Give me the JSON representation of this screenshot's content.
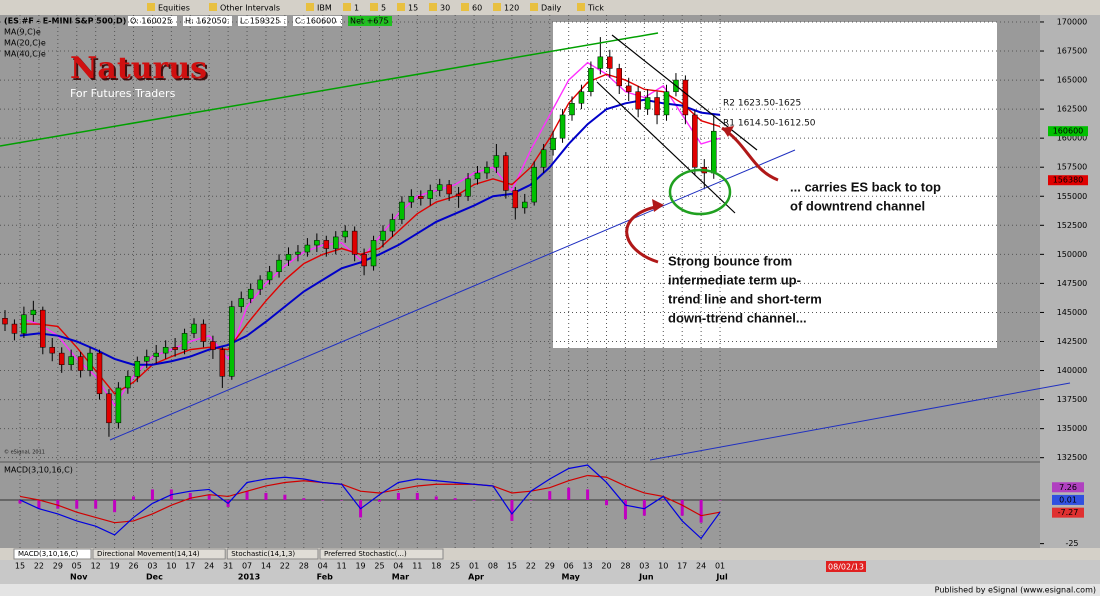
{
  "toolbar": [
    "Equities",
    "Other Intervals",
    "IBM",
    "1",
    "5",
    "15",
    "30",
    "60",
    "120",
    "Daily",
    "Tick"
  ],
  "chart_data": {
    "type": "candlestick",
    "symbol": "(ES #F - E-MINI S&P 500,D)",
    "quote": [
      "O: 160025",
      "H: 162050",
      "L: 159325",
      "C: 160600",
      "Net +675"
    ],
    "brand": "Naturus",
    "tagline": "For Futures Traders",
    "copyright": "© eSignal, 2011",
    "up_color": "#00c000",
    "down_color": "#e00000",
    "candles": [
      [
        144500,
        145200,
        143400,
        144000
      ],
      [
        144000,
        144400,
        142600,
        143200
      ],
      [
        143200,
        145500,
        142800,
        144800
      ],
      [
        144800,
        146000,
        144200,
        145200
      ],
      [
        145200,
        145500,
        141400,
        142000
      ],
      [
        142000,
        142800,
        140800,
        141500
      ],
      [
        141500,
        142000,
        139800,
        140500
      ],
      [
        140500,
        141800,
        140000,
        141200
      ],
      [
        141200,
        141600,
        139400,
        140000
      ],
      [
        140000,
        142000,
        139500,
        141500
      ],
      [
        141500,
        141800,
        137500,
        138000
      ],
      [
        138000,
        138400,
        134300,
        135500
      ],
      [
        135500,
        139000,
        135000,
        138500
      ],
      [
        138500,
        140000,
        138000,
        139500
      ],
      [
        139500,
        141200,
        139000,
        140800
      ],
      [
        140800,
        141800,
        140200,
        141200
      ],
      [
        141200,
        142200,
        140600,
        141500
      ],
      [
        141500,
        142600,
        141000,
        142000
      ],
      [
        142000,
        142800,
        141200,
        141800
      ],
      [
        141800,
        143600,
        141400,
        143200
      ],
      [
        143200,
        144500,
        142800,
        144000
      ],
      [
        144000,
        144400,
        142000,
        142500
      ],
      [
        142500,
        143000,
        141000,
        141800
      ],
      [
        141800,
        142000,
        138500,
        139500
      ],
      [
        139500,
        146000,
        139200,
        145500
      ],
      [
        145500,
        146800,
        145000,
        146200
      ],
      [
        146200,
        147500,
        145800,
        147000
      ],
      [
        147000,
        148200,
        146500,
        147800
      ],
      [
        147800,
        149000,
        147400,
        148500
      ],
      [
        148500,
        150000,
        148000,
        149500
      ],
      [
        149500,
        150600,
        149000,
        150000
      ],
      [
        150000,
        150800,
        149400,
        150200
      ],
      [
        150200,
        151400,
        149800,
        150800
      ],
      [
        150800,
        151800,
        150200,
        151200
      ],
      [
        151200,
        151600,
        149800,
        150500
      ],
      [
        150500,
        152000,
        150000,
        151500
      ],
      [
        151500,
        152500,
        151000,
        152000
      ],
      [
        152000,
        152400,
        149400,
        150000
      ],
      [
        150000,
        150500,
        148200,
        149000
      ],
      [
        149000,
        151600,
        148600,
        151200
      ],
      [
        151200,
        152500,
        150600,
        152000
      ],
      [
        152000,
        153500,
        151500,
        153000
      ],
      [
        153000,
        155000,
        152600,
        154500
      ],
      [
        154500,
        155600,
        154000,
        155000
      ],
      [
        155000,
        155500,
        154200,
        154800
      ],
      [
        154800,
        156000,
        154200,
        155500
      ],
      [
        155500,
        156500,
        155000,
        156000
      ],
      [
        156000,
        156400,
        154600,
        155200
      ],
      [
        155200,
        155800,
        154000,
        155000
      ],
      [
        155000,
        157000,
        154600,
        156500
      ],
      [
        156500,
        157600,
        156000,
        157000
      ],
      [
        157000,
        158000,
        156500,
        157500
      ],
      [
        157500,
        159500,
        157000,
        158500
      ],
      [
        158500,
        158800,
        154800,
        155500
      ],
      [
        155500,
        155800,
        153000,
        154000
      ],
      [
        154000,
        155200,
        153500,
        154500
      ],
      [
        154500,
        158000,
        154200,
        157500
      ],
      [
        157500,
        159500,
        157000,
        159000
      ],
      [
        159000,
        160600,
        158500,
        160000
      ],
      [
        160000,
        162500,
        159600,
        162000
      ],
      [
        162000,
        163600,
        161500,
        163000
      ],
      [
        163000,
        164600,
        162500,
        164000
      ],
      [
        164000,
        166600,
        163600,
        166000
      ],
      [
        166000,
        168700,
        165500,
        167000
      ],
      [
        167000,
        167600,
        165200,
        166000
      ],
      [
        166000,
        166400,
        163800,
        164500
      ],
      [
        164500,
        165200,
        163200,
        164000
      ],
      [
        164000,
        164500,
        161800,
        162500
      ],
      [
        162500,
        164200,
        162000,
        163500
      ],
      [
        163500,
        164000,
        161200,
        162000
      ],
      [
        162000,
        164600,
        161500,
        164000
      ],
      [
        164000,
        165600,
        163600,
        165000
      ],
      [
        165000,
        165400,
        161200,
        162000
      ],
      [
        162000,
        162400,
        156800,
        157500
      ],
      [
        157500,
        158200,
        155600,
        157000
      ],
      [
        157000,
        162000,
        156500,
        160600
      ]
    ],
    "series": [
      {
        "name": "MA(9,C)e",
        "color": "#ff30ff",
        "values": [
          144500,
          144000,
          143000,
          141000,
          139500,
          137000,
          139500,
          141200,
          141800,
          142500,
          143000,
          141000,
          145500,
          147500,
          149000,
          150200,
          150800,
          151000,
          149500,
          151500,
          153500,
          155000,
          155500,
          156000,
          157000,
          157500,
          155500,
          159000,
          162000,
          165000,
          166500,
          165500,
          164000,
          163500,
          164500,
          162000,
          159500,
          160000
        ]
      },
      {
        "name": "MA(20,C)e",
        "color": "#e00000",
        "values": [
          144000,
          144000,
          143800,
          142000,
          140000,
          138000,
          139000,
          140500,
          141200,
          141800,
          142000,
          141800,
          144000,
          146000,
          147800,
          149200,
          150000,
          150500,
          150000,
          150500,
          152000,
          153500,
          154500,
          155000,
          156000,
          156500,
          156000,
          157500,
          160000,
          163000,
          164800,
          165500,
          165000,
          164200,
          164000,
          163000,
          161500,
          161000
        ]
      },
      {
        "name": "MA(40,C)e",
        "color": "#0000c8",
        "values": [
          143000,
          143200,
          143000,
          142500,
          141800,
          141000,
          140500,
          140500,
          140800,
          141200,
          141800,
          142200,
          143000,
          144200,
          145500,
          146800,
          147800,
          148800,
          149300,
          150000,
          150800,
          151800,
          152800,
          153500,
          154200,
          155000,
          155200,
          156000,
          157500,
          159500,
          161200,
          162500,
          163000,
          163300,
          163000,
          162800,
          162200,
          162000
        ]
      }
    ],
    "ylim": [
      132300,
      170600
    ],
    "yticks": [
      132500,
      135000,
      137500,
      140000,
      142500,
      145000,
      147500,
      150000,
      152500,
      155000,
      157500,
      160000,
      162500,
      165000,
      167500,
      170000
    ],
    "grid": true,
    "markers": [
      {
        "value": 160600,
        "color": "#00c000"
      },
      {
        "value": 156380,
        "color": "#e00000"
      }
    ],
    "dates": [
      {
        "day": "15"
      },
      {
        "day": "22"
      },
      {
        "day": "29"
      },
      {
        "day": "05",
        "month": "Nov"
      },
      {
        "day": "12"
      },
      {
        "day": "19"
      },
      {
        "day": "26"
      },
      {
        "day": "03",
        "month": "Dec"
      },
      {
        "day": "10"
      },
      {
        "day": "17"
      },
      {
        "day": "24"
      },
      {
        "day": "31"
      },
      {
        "day": "07",
        "month": "2013"
      },
      {
        "day": "14"
      },
      {
        "day": "22"
      },
      {
        "day": "28"
      },
      {
        "day": "04",
        "month": "Feb"
      },
      {
        "day": "11"
      },
      {
        "day": "19"
      },
      {
        "day": "25"
      },
      {
        "day": "04",
        "month": "Mar"
      },
      {
        "day": "11"
      },
      {
        "day": "18"
      },
      {
        "day": "25"
      },
      {
        "day": "01",
        "month": "Apr"
      },
      {
        "day": "08"
      },
      {
        "day": "15"
      },
      {
        "day": "22"
      },
      {
        "day": "29"
      },
      {
        "day": "06",
        "month": "May"
      },
      {
        "day": "13"
      },
      {
        "day": "20"
      },
      {
        "day": "28"
      },
      {
        "day": "03",
        "month": "Jun"
      },
      {
        "day": "10"
      },
      {
        "day": "17"
      },
      {
        "day": "24"
      },
      {
        "day": "01",
        "month": "Jul"
      }
    ],
    "annotations": {
      "r2": "R2 1623.50-1625",
      "r1": "R1 1614.50-1612.50",
      "carries": [
        "... carries ES back to top",
        "of downtrend channel"
      ],
      "bounce": [
        "Strong bounce from",
        "intermediate term up-",
        "trend line and short-term",
        "down-ttrend channel..."
      ]
    },
    "macd": {
      "name": "MACD(3,10,16,C)",
      "ylim": [
        -27.5,
        20
      ],
      "yticks": [
        -25
      ],
      "line": {
        "color": "#0000e0",
        "values": [
          0,
          -5,
          -8,
          -12,
          -15,
          -20,
          -10,
          -2,
          3,
          5,
          6,
          -2,
          10,
          12,
          13,
          12,
          10,
          9,
          -5,
          3,
          10,
          12,
          11,
          10,
          9,
          8,
          -8,
          5,
          12,
          18,
          20,
          10,
          -3,
          -5,
          2,
          -12,
          -22,
          -7
        ]
      },
      "signal": {
        "color": "#d00000",
        "values": [
          2,
          0,
          -3,
          -7,
          -10,
          -13,
          -12,
          -8,
          -3,
          1,
          3,
          2,
          5,
          8,
          10,
          11,
          10,
          9,
          5,
          4,
          6,
          8,
          9,
          9,
          9,
          8,
          4,
          5,
          7,
          11,
          14,
          13,
          8,
          4,
          2,
          -3,
          -9,
          -7
        ]
      },
      "histogram": {
        "color": "#c000c0",
        "values": [
          -2,
          -5,
          -5,
          -5,
          -5,
          -7,
          2,
          6,
          6,
          4,
          3,
          -4,
          5,
          4,
          3,
          1,
          0,
          0,
          -10,
          -1,
          4,
          4,
          2,
          1,
          0,
          0,
          -12,
          0,
          5,
          7,
          6,
          -3,
          -11,
          -9,
          0,
          -9,
          -13,
          0
        ]
      },
      "markers": [
        {
          "value": 7.26,
          "color": "#b040c0"
        },
        {
          "value": 0.01,
          "color": "#3050e0"
        },
        {
          "value": -7.27,
          "color": "#e03030"
        }
      ]
    }
  },
  "tabs": [
    "MACD(3,10,16,C)",
    "Directional Movement(14,14)",
    "Stochastic(14,1,3)",
    "Preferred Stochastic(...)"
  ],
  "status_date": "08/02/13",
  "footer": "Published by eSignal (www.esignal.com)"
}
